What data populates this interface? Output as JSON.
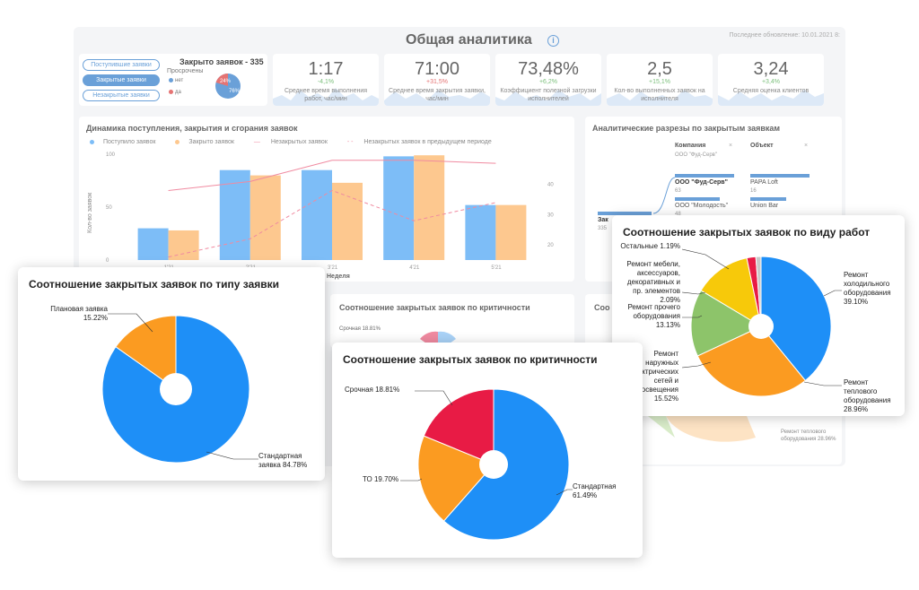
{
  "dashboard": {
    "title": "Общая аналитика",
    "last_update": "Последнее обновление: 10.01.2021 8:",
    "filters": [
      "Поступившие заявки",
      "Закрытые заявки",
      "Незакрытые заявки"
    ],
    "closed_title": "Закрыто заявок - 335",
    "overdue_label": "Просрочены",
    "overdue_legend": [
      "нет",
      "да"
    ],
    "overdue_pct": [
      "24%",
      "76%"
    ],
    "kpis": [
      {
        "value": "1:17",
        "delta": "-4,1%",
        "label": "Среднее время выполнения работ, час/мин"
      },
      {
        "value": "71:00",
        "delta": "+31,5%",
        "label": "Среднее время закрытия заявки, час/мин"
      },
      {
        "value": "73,48%",
        "delta": "+6,2%",
        "label": "Коэффициент полезной загрузки исполнителей"
      },
      {
        "value": "2,5",
        "delta": "+15,1%",
        "label": "Кол-во выполненных заявок на исполнителя"
      },
      {
        "value": "3,24",
        "delta": "+3,4%",
        "label": "Средняя оценка клиентов"
      }
    ],
    "dynamics": {
      "title": "Динамика поступления, закрытия и сгорания заявок",
      "legend": [
        "Поступило заявок",
        "Закрыто заявок",
        "Незакрытых заявок",
        "Незакрытых заявок в предыдущем периоде"
      ],
      "y_title": "Кол-во заявок",
      "x_title": "Неделя",
      "y_ticks": [
        "100",
        "50",
        "0"
      ],
      "y2_ticks": [
        "40",
        "30",
        "20"
      ],
      "x_ticks": [
        "1'21",
        "2'21",
        "3'21",
        "4'21",
        "5'21"
      ]
    },
    "analytics": {
      "title": "Аналитические разрезы по закрытым заявкам",
      "col_company": "Компания",
      "col_object": "Объект",
      "company_sub": "ООО \"Фуд-Серв\"",
      "rows_company": [
        {
          "name": "ООО \"Фуд-Серв\"",
          "count": "63"
        },
        {
          "name": "ООО \"Молодость\"",
          "count": "48"
        }
      ],
      "rows_object": [
        {
          "name": "PAPA Loft",
          "count": "16"
        },
        {
          "name": "Union Bar",
          "count": ""
        }
      ],
      "left_stub": "Зак",
      "left_count": "335"
    },
    "crit_bg_title": "Соотношение закрытых заявок по критичности",
    "crit_bg_label": "Срочная 18.81%",
    "other_bg_title": "Соо",
    "other_bg_label": "Ремонт теплового оборудования 28.96%"
  },
  "cards": {
    "type": {
      "title": "Соотношение закрытых заявок по типу заявки",
      "labels": [
        "Плановая заявка 15.22%",
        "Стандартная заявка 84.78%"
      ]
    },
    "crit": {
      "title": "Соотношение закрытых заявок по критичности",
      "labels": [
        "Срочная 18.81%",
        "ТО 19.70%",
        "Стандартная 61.49%"
      ]
    },
    "work": {
      "title": "Соотношение закрытых заявок по виду работ",
      "labels": [
        "Остальные 1.19%",
        "Ремонт мебели, аксессуаров, декоративных и пр. элементов 2.09%",
        "Ремонт прочего оборудования 13.13%",
        "Ремонт наружных электрических сетей и освещения 15.52%",
        "Ремонт холодильного оборудования 39.10%",
        "Ремонт теплового оборудования 28.96%"
      ]
    }
  },
  "chart_data": [
    {
      "type": "bar",
      "title": "Динамика поступления, закрытия и сгорания заявок",
      "categories": [
        "1'21",
        "2'21",
        "3'21",
        "4'21",
        "5'21"
      ],
      "series": [
        {
          "name": "Поступило заявок",
          "values": [
            30,
            85,
            85,
            98,
            52
          ],
          "color": "#7dbdf7"
        },
        {
          "name": "Закрыто заявок",
          "values": [
            28,
            80,
            73,
            99,
            52
          ],
          "color": "#fdc88f"
        },
        {
          "name": "Незакрытых заявок",
          "values": [
            38,
            41,
            48,
            48,
            47
          ],
          "axis": "right",
          "color": "#f08aa0"
        },
        {
          "name": "Незакрытых заявок в предыдущем периоде",
          "values": [
            16,
            22,
            38,
            28,
            34
          ],
          "axis": "right",
          "color": "#f08aa0"
        }
      ],
      "ylabel": "Кол-во заявок",
      "xlabel": "Неделя",
      "ylim": [
        0,
        100
      ]
    },
    {
      "type": "pie",
      "title": "Соотношение закрытых заявок по типу заявки",
      "categories": [
        "Стандартная заявка",
        "Плановая заявка"
      ],
      "values": [
        84.78,
        15.22
      ],
      "colors": [
        "#1e8ff7",
        "#fb9b21"
      ]
    },
    {
      "type": "pie",
      "title": "Соотношение закрытых заявок по критичности",
      "categories": [
        "Стандартная",
        "ТО",
        "Срочная"
      ],
      "values": [
        61.49,
        19.7,
        18.81
      ],
      "colors": [
        "#1e8ff7",
        "#fb9b21",
        "#e81b45"
      ]
    },
    {
      "type": "pie",
      "title": "Соотношение закрытых заявок по виду работ",
      "categories": [
        "Ремонт холодильного оборудования",
        "Ремонт теплового оборудования",
        "Ремонт наружных электрических сетей и освещения",
        "Ремонт прочего оборудования",
        "Ремонт мебели, аксессуаров, декоративных и пр. элементов",
        "Остальные"
      ],
      "values": [
        39.1,
        28.96,
        15.52,
        13.13,
        2.09,
        1.19
      ],
      "colors": [
        "#1e8ff7",
        "#fb9b21",
        "#8dc46a",
        "#f7c90a",
        "#e81b45",
        "#c8c8c8"
      ]
    }
  ]
}
